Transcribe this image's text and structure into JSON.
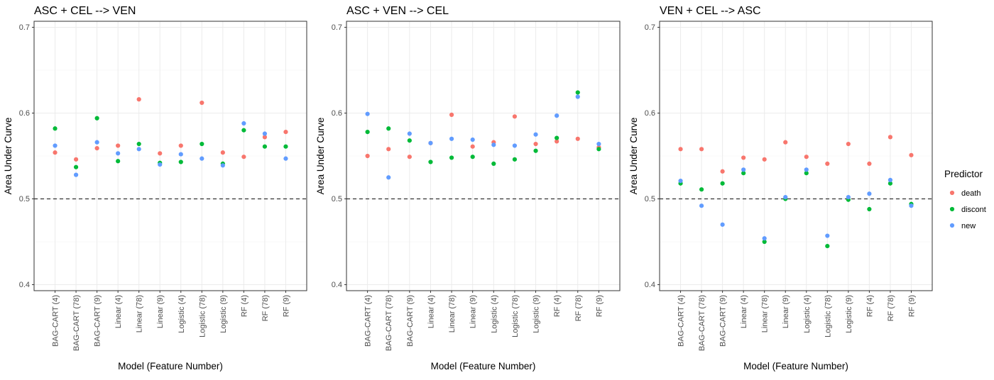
{
  "colors": {
    "death": "#F8766D",
    "discont": "#00BA38",
    "new": "#619CFF",
    "panel_border": "#333333",
    "grid_major": "#EBEBEB",
    "grid_minor": "#F5F5F5",
    "reference_line": "#333333"
  },
  "legend": {
    "title": "Predictor",
    "position": "right",
    "items": [
      {
        "key": "death",
        "label": "death"
      },
      {
        "key": "discont",
        "label": "discont"
      },
      {
        "key": "new",
        "label": "new"
      }
    ]
  },
  "chart_data": [
    {
      "type": "scatter",
      "title": "ASC + CEL --> VEN",
      "xlabel": "Model (Feature Number)",
      "ylabel": "Area Under Curve",
      "ylim": [
        0.393,
        0.707
      ],
      "yticks": [
        0.4,
        0.5,
        0.6,
        0.7
      ],
      "ytick_labels": [
        "0.4",
        "0.5",
        "0.6",
        "0.7"
      ],
      "reference_line": 0.5,
      "grid": true,
      "categories": [
        "BAG-CART (4)",
        "BAG-CART (78)",
        "BAG-CART (9)",
        "Linear (4)",
        "Linear (78)",
        "Linear (9)",
        "Logistic (4)",
        "Logistic (78)",
        "Logistic (9)",
        "RF (4)",
        "RF (78)",
        "RF (9)"
      ],
      "series": [
        {
          "name": "death",
          "values": [
            0.554,
            0.546,
            0.559,
            0.562,
            0.616,
            0.553,
            0.562,
            0.612,
            0.554,
            0.549,
            0.572,
            0.578
          ]
        },
        {
          "name": "discont",
          "values": [
            0.582,
            0.537,
            0.594,
            0.544,
            0.564,
            0.542,
            0.543,
            0.564,
            0.541,
            0.58,
            0.561,
            0.561
          ]
        },
        {
          "name": "new",
          "values": [
            0.562,
            0.528,
            0.566,
            0.553,
            0.558,
            0.54,
            0.552,
            0.547,
            0.539,
            0.588,
            0.576,
            0.547
          ]
        }
      ]
    },
    {
      "type": "scatter",
      "title": "ASC + VEN --> CEL",
      "xlabel": "Model (Feature Number)",
      "ylabel": "Area Under Curve",
      "ylim": [
        0.393,
        0.707
      ],
      "yticks": [
        0.4,
        0.5,
        0.6,
        0.7
      ],
      "ytick_labels": [
        "0.4",
        "0.5",
        "0.6",
        "0.7"
      ],
      "reference_line": 0.5,
      "grid": true,
      "categories": [
        "BAG-CART (4)",
        "BAG-CART (78)",
        "BAG-CART (9)",
        "Linear (4)",
        "Linear (78)",
        "Linear (9)",
        "Logistic (4)",
        "Logistic (78)",
        "Logistic (9)",
        "RF (4)",
        "RF (78)",
        "RF (9)"
      ],
      "series": [
        {
          "name": "death",
          "values": [
            0.55,
            0.558,
            0.549,
            0.565,
            0.598,
            0.561,
            0.566,
            0.596,
            0.564,
            0.567,
            0.57,
            0.56
          ]
        },
        {
          "name": "discont",
          "values": [
            0.578,
            0.582,
            0.568,
            0.543,
            0.548,
            0.549,
            0.541,
            0.546,
            0.556,
            0.571,
            0.624,
            0.558
          ]
        },
        {
          "name": "new",
          "values": [
            0.599,
            0.525,
            0.576,
            0.565,
            0.57,
            0.569,
            0.563,
            0.562,
            0.575,
            0.597,
            0.619,
            0.564
          ]
        }
      ]
    },
    {
      "type": "scatter",
      "title": "VEN + CEL --> ASC",
      "xlabel": "Model (Feature Number)",
      "ylabel": "Area Under Curve",
      "ylim": [
        0.393,
        0.707
      ],
      "yticks": [
        0.4,
        0.5,
        0.6,
        0.7
      ],
      "ytick_labels": [
        "0.4",
        "0.5",
        "0.6",
        "0.7"
      ],
      "reference_line": 0.5,
      "grid": true,
      "categories": [
        "BAG-CART (4)",
        "BAG-CART (78)",
        "BAG-CART (9)",
        "Linear (4)",
        "Linear (78)",
        "Linear (9)",
        "Logistic (4)",
        "Logistic (78)",
        "Logistic (9)",
        "RF (4)",
        "RF (78)",
        "RF (9)"
      ],
      "series": [
        {
          "name": "death",
          "values": [
            0.558,
            0.558,
            0.532,
            0.548,
            0.546,
            0.566,
            0.549,
            0.541,
            0.564,
            0.541,
            0.572,
            0.551
          ]
        },
        {
          "name": "discont",
          "values": [
            0.518,
            0.511,
            0.518,
            0.53,
            0.45,
            0.5,
            0.53,
            0.445,
            0.499,
            0.488,
            0.518,
            0.494
          ]
        },
        {
          "name": "new",
          "values": [
            0.521,
            0.492,
            0.47,
            0.534,
            0.454,
            0.502,
            0.534,
            0.457,
            0.502,
            0.506,
            0.522,
            0.492
          ]
        }
      ]
    }
  ]
}
